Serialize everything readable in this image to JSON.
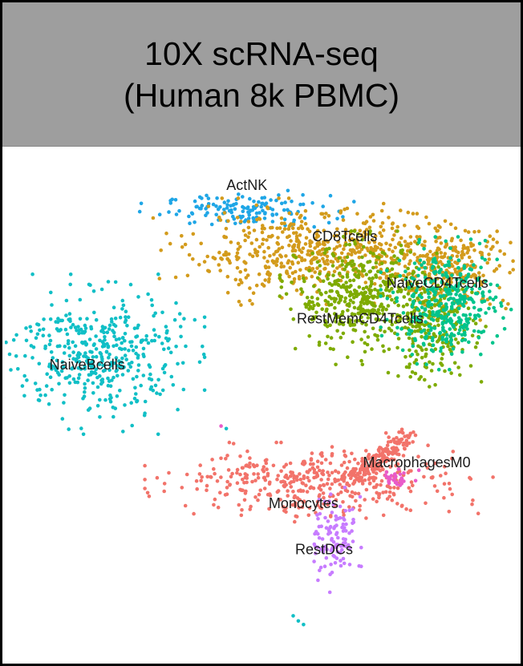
{
  "header": {
    "title_line1": "10X scRNA-seq",
    "title_line2": "(Human 8k PBMC)",
    "background": "#9e9e9e"
  },
  "chart_data": {
    "type": "scatter",
    "axes_visible": false,
    "grid": false,
    "legend": "none",
    "note": "UMAP-style embedding; coordinates are in an arbitrary 0-100 embedding space (x right, y up).",
    "xlim": [
      0,
      100
    ],
    "ylim": [
      0,
      100
    ],
    "clusters": [
      {
        "name": "ActNK",
        "color": "#1fa6e6",
        "points": 140,
        "center": [
          47,
          88
        ],
        "spread": [
          8,
          1.5
        ],
        "label_at": [
          47,
          92
        ]
      },
      {
        "name": "CD8Tcells",
        "color": "#d39b1c",
        "points": 520,
        "center": [
          60,
          80
        ],
        "spread": [
          12,
          4
        ],
        "label_at": [
          66,
          82
        ]
      },
      {
        "name": "CD8Tcells",
        "color": "#d39b1c",
        "points": 260,
        "center": [
          86,
          77
        ],
        "spread": [
          6,
          4
        ],
        "label_at": null
      },
      {
        "name": "RestMemCD4Tcells",
        "color": "#7eab00",
        "points": 420,
        "center": [
          69,
          71
        ],
        "spread": [
          6,
          5
        ],
        "label_at": [
          69,
          66
        ]
      },
      {
        "name": "RestMemCD4Tcells",
        "color": "#7eab00",
        "points": 220,
        "center": [
          83,
          65
        ],
        "spread": [
          4,
          5
        ],
        "label_at": null
      },
      {
        "name": "NaiveCD4Tcells",
        "color": "#00c48c",
        "points": 360,
        "center": [
          86,
          70
        ],
        "spread": [
          5,
          5
        ],
        "label_at": [
          84,
          73
        ]
      },
      {
        "name": "NaiveBcells",
        "color": "#11bfc6",
        "points": 420,
        "center": [
          18,
          60
        ],
        "spread": [
          8,
          6
        ],
        "label_at": [
          16,
          57
        ]
      },
      {
        "name": "Monocytes",
        "color": "#f2736a",
        "points": 600,
        "center": [
          61,
          35
        ],
        "spread": [
          13,
          3
        ],
        "label_at": [
          58,
          30
        ]
      },
      {
        "name": "MacrophagesM0",
        "color": "#e95bc9",
        "points": 30,
        "center": [
          76,
          36
        ],
        "spread": [
          2,
          0.8
        ],
        "label_at": [
          80,
          38
        ]
      },
      {
        "name": "RestDCs",
        "color": "#c77cff",
        "points": 110,
        "center": [
          64,
          24
        ],
        "spread": [
          2,
          4
        ],
        "label_at": [
          62,
          21
        ]
      }
    ]
  }
}
